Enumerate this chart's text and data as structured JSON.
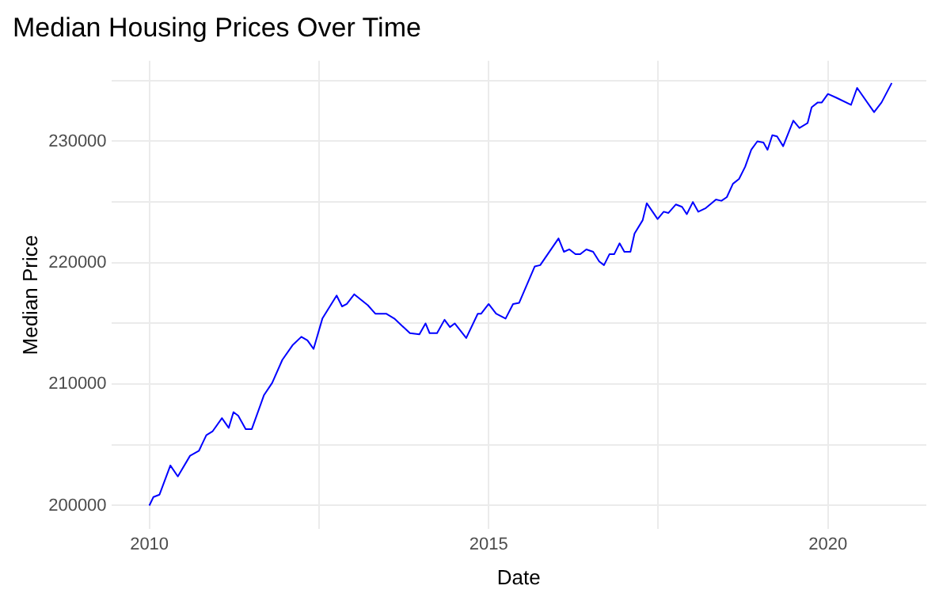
{
  "chart_data": {
    "type": "line",
    "title": "Median Housing Prices Over Time",
    "xlabel": "Date",
    "ylabel": "Median Price",
    "x": [
      2010.0,
      2010.06,
      2010.15,
      2010.31,
      2010.42,
      2010.6,
      2010.73,
      2010.84,
      2010.93,
      2011.07,
      2011.17,
      2011.24,
      2011.31,
      2011.42,
      2011.51,
      2011.69,
      2011.81,
      2011.96,
      2012.11,
      2012.24,
      2012.33,
      2012.42,
      2012.55,
      2012.76,
      2012.84,
      2012.91,
      2013.02,
      2013.22,
      2013.33,
      2013.49,
      2013.61,
      2013.84,
      2013.98,
      2014.07,
      2014.13,
      2014.24,
      2014.35,
      2014.43,
      2014.5,
      2014.67,
      2014.84,
      2014.89,
      2015.0,
      2015.11,
      2015.25,
      2015.36,
      2015.45,
      2015.68,
      2015.76,
      2016.03,
      2016.11,
      2016.19,
      2016.28,
      2016.35,
      2016.44,
      2016.54,
      2016.63,
      2016.7,
      2016.78,
      2016.85,
      2016.93,
      2017.0,
      2017.09,
      2017.15,
      2017.27,
      2017.33,
      2017.49,
      2017.58,
      2017.65,
      2017.76,
      2017.85,
      2017.92,
      2018.01,
      2018.09,
      2018.2,
      2018.35,
      2018.43,
      2018.51,
      2018.6,
      2018.69,
      2018.78,
      2018.87,
      2018.96,
      2019.05,
      2019.11,
      2019.18,
      2019.25,
      2019.34,
      2019.49,
      2019.58,
      2019.7,
      2019.76,
      2019.85,
      2019.91,
      2020.0,
      2020.12,
      2020.34,
      2020.43,
      2020.68,
      2020.79,
      2020.94
    ],
    "series": [
      {
        "color": "#0000ff",
        "values": [
          200000,
          200700,
          200900,
          203300,
          202400,
          204100,
          204500,
          205800,
          206100,
          207200,
          206400,
          207700,
          207400,
          206300,
          206300,
          209100,
          210100,
          212000,
          213200,
          213900,
          213600,
          212900,
          215400,
          217300,
          216400,
          216600,
          217400,
          216500,
          215800,
          215800,
          215400,
          214200,
          214100,
          215000,
          214200,
          214200,
          215300,
          214700,
          215000,
          213800,
          215800,
          215800,
          216600,
          215800,
          215400,
          216600,
          216700,
          219700,
          219800,
          222000,
          220900,
          221100,
          220700,
          220700,
          221100,
          220900,
          220100,
          219800,
          220700,
          220700,
          221600,
          220900,
          220900,
          222400,
          223500,
          224900,
          223600,
          224200,
          224100,
          224800,
          224600,
          224000,
          225000,
          224200,
          224500,
          225200,
          225100,
          225400,
          226500,
          226900,
          227900,
          229300,
          230000,
          229900,
          229300,
          230500,
          230400,
          229600,
          231700,
          231100,
          231500,
          232800,
          233200,
          233200,
          233900,
          233600,
          233000,
          234400,
          232400,
          233200,
          234800
        ]
      }
    ],
    "xlim": [
      2009.44,
      2021.45
    ],
    "ylim": [
      198050,
      236630
    ],
    "xticks": [
      2010,
      {
        "value": 2012.5,
        "label": null
      },
      2015,
      {
        "value": 2017.5,
        "label": null
      },
      2020
    ],
    "yticks": [
      200000,
      {
        "value": 205000,
        "label": null
      },
      210000,
      {
        "value": 215000,
        "label": null
      },
      220000,
      {
        "value": 225000,
        "label": null
      },
      230000,
      {
        "value": 235000,
        "label": null
      }
    ],
    "grid": true,
    "legend": false,
    "marker": "none",
    "line_style": "solid"
  }
}
